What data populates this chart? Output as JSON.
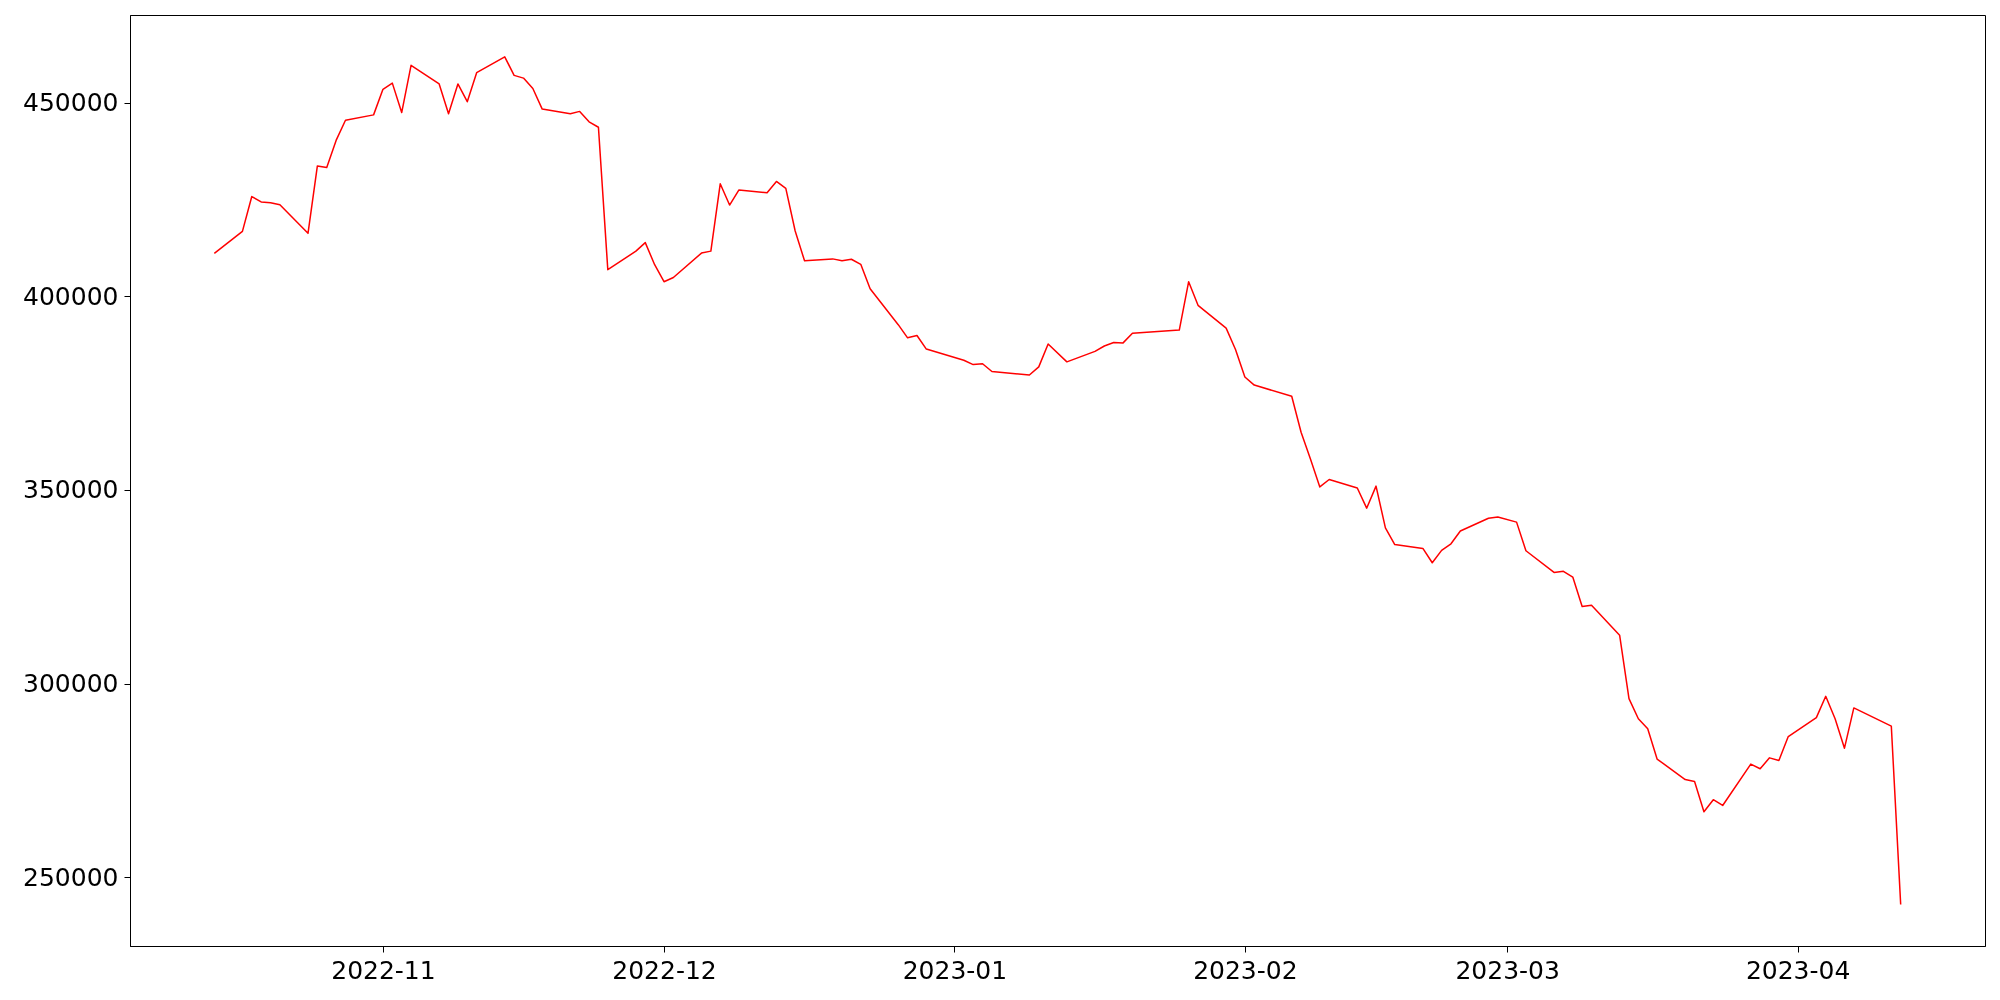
{
  "chart_data": {
    "type": "line",
    "x": [
      "2022-10-14",
      "2022-10-17",
      "2022-10-18",
      "2022-10-19",
      "2022-10-20",
      "2022-10-21",
      "2022-10-24",
      "2022-10-25",
      "2022-10-26",
      "2022-10-27",
      "2022-10-28",
      "2022-10-31",
      "2022-11-01",
      "2022-11-02",
      "2022-11-03",
      "2022-11-04",
      "2022-11-07",
      "2022-11-08",
      "2022-11-09",
      "2022-11-10",
      "2022-11-11",
      "2022-11-14",
      "2022-11-15",
      "2022-11-16",
      "2022-11-17",
      "2022-11-18",
      "2022-11-21",
      "2022-11-22",
      "2022-11-23",
      "2022-11-24",
      "2022-11-25",
      "2022-11-28",
      "2022-11-29",
      "2022-11-30",
      "2022-12-01",
      "2022-12-02",
      "2022-12-05",
      "2022-12-06",
      "2022-12-07",
      "2022-12-08",
      "2022-12-09",
      "2022-12-12",
      "2022-12-13",
      "2022-12-14",
      "2022-12-15",
      "2022-12-16",
      "2022-12-19",
      "2022-12-20",
      "2022-12-21",
      "2022-12-22",
      "2022-12-23",
      "2022-12-26",
      "2022-12-27",
      "2022-12-28",
      "2022-12-29",
      "2023-01-02",
      "2023-01-03",
      "2023-01-04",
      "2023-01-05",
      "2023-01-09",
      "2023-01-10",
      "2023-01-11",
      "2023-01-13",
      "2023-01-16",
      "2023-01-17",
      "2023-01-18",
      "2023-01-19",
      "2023-01-20",
      "2023-01-25",
      "2023-01-26",
      "2023-01-27",
      "2023-01-30",
      "2023-01-31",
      "2023-02-01",
      "2023-02-02",
      "2023-02-06",
      "2023-02-07",
      "2023-02-08",
      "2023-02-09",
      "2023-02-10",
      "2023-02-13",
      "2023-02-14",
      "2023-02-15",
      "2023-02-16",
      "2023-02-17",
      "2023-02-20",
      "2023-02-21",
      "2023-02-22",
      "2023-02-23",
      "2023-02-24",
      "2023-02-27",
      "2023-02-28",
      "2023-03-02",
      "2023-03-03",
      "2023-03-06",
      "2023-03-07",
      "2023-03-08",
      "2023-03-09",
      "2023-03-10",
      "2023-03-13",
      "2023-03-14",
      "2023-03-15",
      "2023-03-16",
      "2023-03-17",
      "2023-03-20",
      "2023-03-21",
      "2023-03-22",
      "2023-03-23",
      "2023-03-24",
      "2023-03-27",
      "2023-03-28",
      "2023-03-29",
      "2023-03-30",
      "2023-03-31",
      "2023-04-03",
      "2023-04-04",
      "2023-04-05",
      "2023-04-06",
      "2023-04-07",
      "2023-04-11",
      "2023-04-12"
    ],
    "series": [
      {
        "color": "#ff0000",
        "values": [
          411100,
          416800,
          425800,
          424400,
          424200,
          423700,
          416300,
          433700,
          433300,
          440300,
          445500,
          446900,
          453500,
          455100,
          447500,
          459700,
          454900,
          447200,
          454900,
          450300,
          457800,
          461900,
          457100,
          456400,
          453700,
          448400,
          447200,
          447800,
          445100,
          443700,
          406900,
          411700,
          413900,
          408200,
          403800,
          404900,
          411200,
          411700,
          429100,
          423600,
          427500,
          426800,
          429700,
          427900,
          416900,
          409200,
          409700,
          409200,
          409600,
          408300,
          402000,
          392700,
          389300,
          389900,
          386400,
          383500,
          382400,
          382600,
          380600,
          379700,
          381800,
          387700,
          383100,
          385800,
          387200,
          388100,
          388000,
          390500,
          391300,
          403800,
          397700,
          391800,
          386300,
          379200,
          377100,
          374200,
          364900,
          358000,
          350800,
          352700,
          350500,
          345300,
          351000,
          340200,
          335900,
          334900,
          331200,
          334400,
          336100,
          339400,
          342700,
          343000,
          341700,
          334300,
          328700,
          329000,
          327500,
          319900,
          320200,
          312500,
          296100,
          290900,
          288300,
          280500,
          275200,
          274700,
          266900,
          270000,
          268500,
          279200,
          278000,
          280800,
          280100,
          286300,
          291200,
          296700,
          290900,
          283300,
          293700,
          289000,
          242900
        ]
      }
    ],
    "xlim": [
      "2022-10-05",
      "2023-04-21"
    ],
    "xticks": [
      {
        "value": "2022-11-01",
        "label": "2022-11"
      },
      {
        "value": "2022-12-01",
        "label": "2022-12"
      },
      {
        "value": "2023-01-01",
        "label": "2023-01"
      },
      {
        "value": "2023-02-01",
        "label": "2023-02"
      },
      {
        "value": "2023-03-01",
        "label": "2023-03"
      },
      {
        "value": "2023-04-01",
        "label": "2023-04"
      }
    ],
    "ylim": [
      232200,
      472700
    ],
    "yticks": [
      250000,
      300000,
      350000,
      400000,
      450000
    ]
  }
}
